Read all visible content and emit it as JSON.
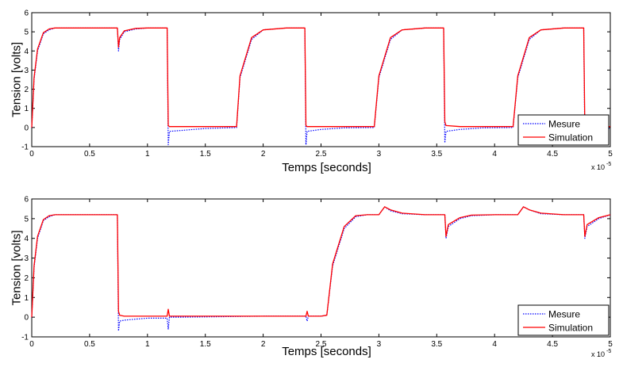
{
  "figure": {
    "x_exponent_base": "x 10",
    "x_exponent_power": "-5"
  },
  "chart_data": [
    {
      "type": "line",
      "title": "",
      "xlabel": "Temps [seconds]",
      "ylabel": "Tension [volts]",
      "xlim": [
        0,
        5
      ],
      "ylim": [
        -1,
        6
      ],
      "x_unit_multiplier": "1e-5",
      "xticks": [
        "0",
        "0.5",
        "1",
        "1.5",
        "2",
        "2.5",
        "3",
        "3.5",
        "4",
        "4.5",
        "5"
      ],
      "yticks": [
        "-1",
        "0",
        "1",
        "2",
        "3",
        "4",
        "5",
        "6"
      ],
      "grid": false,
      "legend_position": "bottom-right",
      "series": [
        {
          "name": "Mesure",
          "color": "#0000ff",
          "style": "dotted",
          "x": [
            0,
            0.02,
            0.05,
            0.1,
            0.15,
            0.2,
            0.3,
            0.74,
            0.75,
            0.76,
            0.8,
            0.9,
            1.0,
            1.1,
            1.17,
            1.18,
            1.19,
            1.3,
            1.5,
            1.77,
            1.8,
            1.9,
            2.0,
            2.2,
            2.36,
            2.37,
            2.38,
            2.5,
            2.7,
            2.96,
            3.0,
            3.1,
            3.2,
            3.4,
            3.56,
            3.57,
            3.58,
            3.7,
            3.9,
            4.16,
            4.2,
            4.3,
            4.4,
            4.6,
            4.77,
            4.78,
            4.8,
            5.0
          ],
          "y": [
            0,
            2.5,
            4.0,
            4.9,
            5.1,
            5.2,
            5.2,
            5.2,
            4.0,
            4.6,
            5.0,
            5.15,
            5.2,
            5.2,
            5.2,
            -0.9,
            -0.2,
            -0.15,
            -0.05,
            0,
            2.6,
            4.6,
            5.1,
            5.2,
            5.2,
            -0.9,
            -0.2,
            -0.1,
            -0.02,
            0,
            2.6,
            4.6,
            5.1,
            5.2,
            5.2,
            -0.8,
            -0.2,
            -0.1,
            -0.02,
            0,
            2.6,
            4.6,
            5.1,
            5.2,
            5.2,
            -0.8,
            -0.1,
            -0.05
          ]
        },
        {
          "name": "Simulation",
          "color": "#ff0000",
          "style": "solid",
          "x": [
            0,
            0.02,
            0.05,
            0.1,
            0.15,
            0.2,
            0.3,
            0.74,
            0.75,
            0.76,
            0.8,
            0.9,
            1.0,
            1.1,
            1.17,
            1.18,
            1.19,
            1.3,
            1.5,
            1.77,
            1.8,
            1.9,
            2.0,
            2.2,
            2.36,
            2.37,
            2.38,
            2.5,
            2.7,
            2.96,
            3.0,
            3.1,
            3.2,
            3.4,
            3.56,
            3.57,
            3.58,
            3.7,
            3.9,
            4.16,
            4.2,
            4.3,
            4.4,
            4.6,
            4.77,
            4.78,
            4.8,
            5.0
          ],
          "y": [
            0,
            2.6,
            4.1,
            4.95,
            5.15,
            5.2,
            5.2,
            5.2,
            4.2,
            4.7,
            5.05,
            5.18,
            5.2,
            5.2,
            5.2,
            0.1,
            0.05,
            0.05,
            0.05,
            0.05,
            2.7,
            4.7,
            5.1,
            5.2,
            5.2,
            0.1,
            0.05,
            0.05,
            0.05,
            0.05,
            2.7,
            4.7,
            5.1,
            5.2,
            5.2,
            0.3,
            0.1,
            0.05,
            0.05,
            0.05,
            2.7,
            4.7,
            5.1,
            5.2,
            5.2,
            0.05,
            0.05,
            0.05
          ]
        }
      ]
    },
    {
      "type": "line",
      "title": "",
      "xlabel": "Temps [seconds]",
      "ylabel": "Tension [volts]",
      "xlim": [
        0,
        5
      ],
      "ylim": [
        -1,
        6
      ],
      "x_unit_multiplier": "1e-5",
      "xticks": [
        "0",
        "0.5",
        "1",
        "1.5",
        "2",
        "2.5",
        "3",
        "3.5",
        "4",
        "4.5",
        "5"
      ],
      "yticks": [
        "-1",
        "0",
        "1",
        "2",
        "3",
        "4",
        "5",
        "6"
      ],
      "grid": false,
      "legend_position": "bottom-right",
      "series": [
        {
          "name": "Mesure",
          "color": "#0000ff",
          "style": "dotted",
          "x": [
            0,
            0.02,
            0.05,
            0.1,
            0.15,
            0.2,
            0.3,
            0.74,
            0.75,
            0.76,
            0.8,
            0.9,
            1.0,
            1.17,
            1.18,
            1.19,
            1.3,
            2.0,
            2.37,
            2.38,
            2.39,
            2.5,
            2.55,
            2.6,
            2.7,
            2.8,
            2.9,
            3.0,
            3.05,
            3.1,
            3.2,
            3.4,
            3.57,
            3.58,
            3.6,
            3.7,
            3.8,
            4.0,
            4.2,
            4.25,
            4.3,
            4.4,
            4.6,
            4.77,
            4.78,
            4.8,
            4.9,
            5.0
          ],
          "y": [
            0,
            2.5,
            4.0,
            4.9,
            5.1,
            5.2,
            5.2,
            5.2,
            -0.7,
            -0.2,
            -0.15,
            -0.1,
            -0.05,
            -0.05,
            -0.6,
            0,
            0,
            0.05,
            0.05,
            -0.2,
            0.05,
            0.05,
            0.1,
            2.6,
            4.5,
            5.1,
            5.2,
            5.2,
            5.6,
            5.4,
            5.25,
            5.2,
            5.2,
            4.0,
            4.6,
            5.0,
            5.15,
            5.2,
            5.2,
            5.6,
            5.45,
            5.25,
            5.2,
            5.2,
            4.0,
            4.6,
            5.0,
            5.2
          ]
        },
        {
          "name": "Simulation",
          "color": "#ff0000",
          "style": "solid",
          "x": [
            0,
            0.02,
            0.05,
            0.1,
            0.15,
            0.2,
            0.3,
            0.74,
            0.75,
            0.76,
            0.8,
            0.9,
            1.0,
            1.17,
            1.18,
            1.19,
            1.3,
            2.0,
            2.37,
            2.38,
            2.39,
            2.5,
            2.55,
            2.6,
            2.7,
            2.8,
            2.9,
            3.0,
            3.05,
            3.1,
            3.2,
            3.4,
            3.57,
            3.58,
            3.6,
            3.7,
            3.8,
            4.0,
            4.2,
            4.25,
            4.3,
            4.4,
            4.6,
            4.77,
            4.78,
            4.8,
            4.9,
            5.0
          ],
          "y": [
            0,
            2.6,
            4.1,
            4.95,
            5.15,
            5.2,
            5.2,
            5.2,
            0.3,
            0.1,
            0.05,
            0.05,
            0.05,
            0.05,
            0.4,
            0.05,
            0.05,
            0.05,
            0.05,
            0.3,
            0.05,
            0.05,
            0.1,
            2.7,
            4.6,
            5.15,
            5.2,
            5.2,
            5.6,
            5.45,
            5.28,
            5.2,
            5.2,
            4.1,
            4.7,
            5.05,
            5.18,
            5.2,
            5.2,
            5.6,
            5.45,
            5.28,
            5.2,
            5.2,
            4.1,
            4.7,
            5.05,
            5.2
          ]
        }
      ]
    }
  ]
}
